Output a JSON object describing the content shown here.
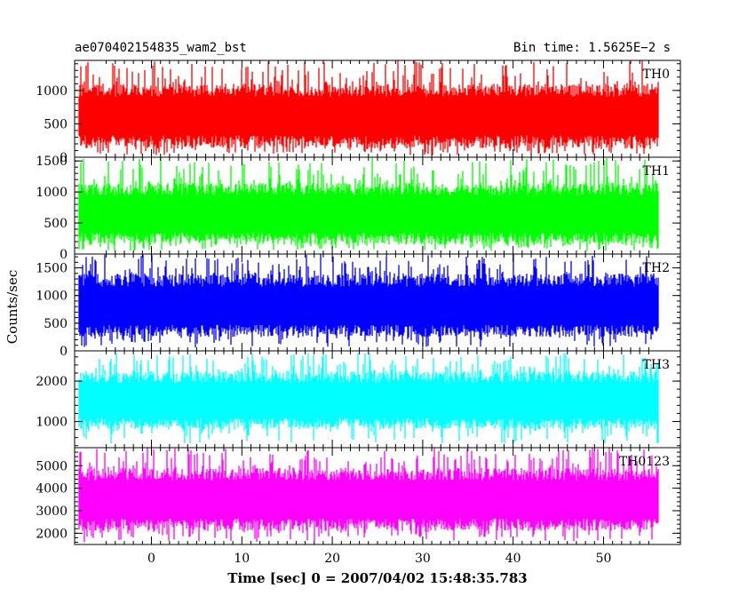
{
  "header": {
    "source": "ae070402154835_wam2_bst",
    "bin_time": "Bin time: 1.5625E−2 s"
  },
  "chart_data": {
    "type": "line",
    "title": "ae070402154835_wam2_bst",
    "subtitle": "Bin time: 1.5625E−2 s",
    "xlabel": "Time [sec] 0 = 2007/04/02 15:48:35.783",
    "ylabel": "Counts/sec",
    "xlim": [
      -8.5,
      58.5
    ],
    "data_xrange": [
      -8,
      56
    ],
    "xticks": [
      0,
      10,
      20,
      30,
      40,
      50
    ],
    "xtick_labels": [
      "0",
      "10",
      "20",
      "30",
      "40",
      "50"
    ],
    "grid": false,
    "panels": [
      {
        "name": "TH0",
        "color": "#ff0000",
        "ylim": [
          0,
          1450
        ],
        "yticks": [
          0,
          500,
          1000
        ],
        "ytick_labels": [
          "0",
          "500",
          "1000"
        ],
        "mean": 620,
        "typical_low": 130,
        "typical_high": 1100,
        "peak_high": 1450,
        "floor_low": 30
      },
      {
        "name": "TH1",
        "color": "#00ff00",
        "ylim": [
          0,
          1560
        ],
        "yticks": [
          0,
          500,
          1000,
          1500
        ],
        "ytick_labels": [
          "0",
          "500",
          "1000",
          "1500"
        ],
        "mean": 640,
        "typical_low": 150,
        "typical_high": 1150,
        "peak_high": 1550,
        "floor_low": 50
      },
      {
        "name": "TH2",
        "color": "#0000ff",
        "ylim": [
          0,
          1750
        ],
        "yticks": [
          0,
          500,
          1000,
          1500
        ],
        "ytick_labels": [
          "0",
          "500",
          "1000",
          "1500"
        ],
        "mean": 800,
        "typical_low": 250,
        "typical_high": 1400,
        "peak_high": 1750,
        "floor_low": 60
      },
      {
        "name": "TH3",
        "color": "#00ffff",
        "ylim": [
          350,
          2750
        ],
        "yticks": [
          1000,
          2000
        ],
        "ytick_labels": [
          "1000",
          "2000"
        ],
        "mean": 1500,
        "typical_low": 800,
        "typical_high": 2250,
        "peak_high": 2700,
        "floor_low": 450
      },
      {
        "name": "TH0123",
        "color": "#ff00ff",
        "ylim": [
          1500,
          5800
        ],
        "yticks": [
          2000,
          3000,
          4000,
          5000
        ],
        "ytick_labels": [
          "2000",
          "3000",
          "4000",
          "5000"
        ],
        "mean": 3500,
        "typical_low": 2100,
        "typical_high": 4900,
        "peak_high": 5800,
        "floor_low": 1600
      }
    ]
  }
}
